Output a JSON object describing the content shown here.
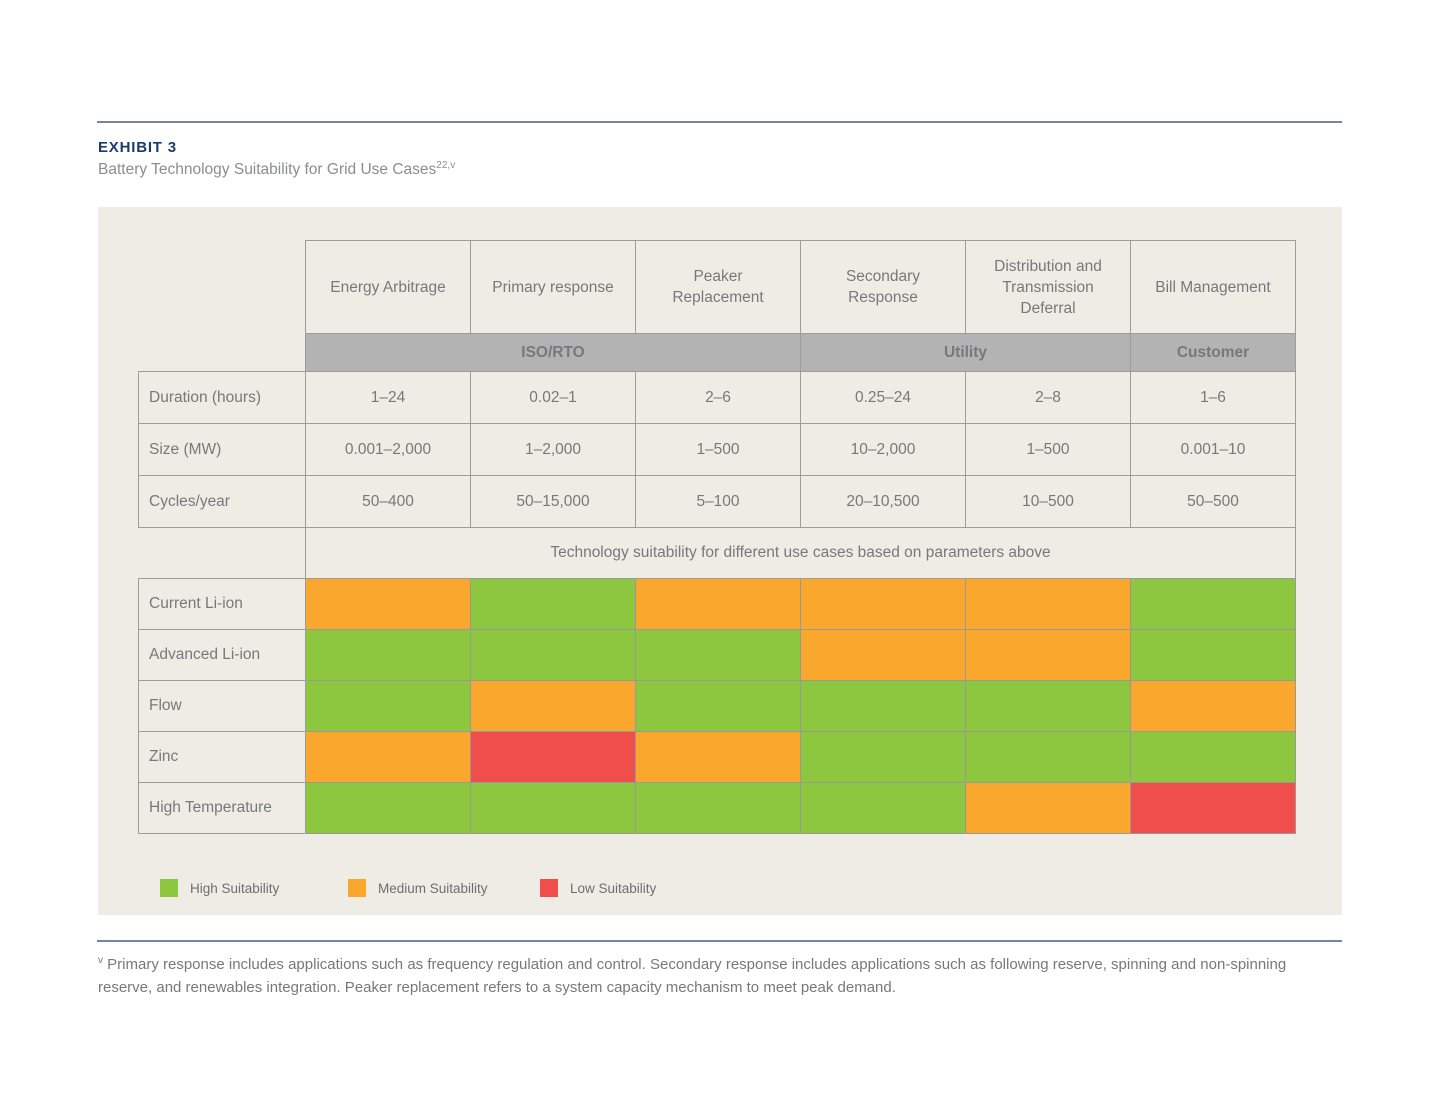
{
  "exhibit": {
    "label": "EXHIBIT 3",
    "title": "Battery Technology Suitability for Grid Use Cases",
    "title_superscript": "22,v"
  },
  "chart_data": {
    "type": "heatmap",
    "title": "Battery Technology Suitability for Grid Use Cases",
    "columns": [
      "Energy Arbitrage",
      "Primary response",
      "Peaker Replacement",
      "Secondary Response",
      "Distribution and Transmission Deferral",
      "Bill Management"
    ],
    "column_groups": [
      {
        "label": "ISO/RTO",
        "span": 3
      },
      {
        "label": "Utility",
        "span": 2
      },
      {
        "label": "Customer",
        "span": 1
      }
    ],
    "parameters": [
      {
        "label": "Duration (hours)",
        "values": [
          "1–24",
          "0.02–1",
          "2–6",
          "0.25–24",
          "2–8",
          "1–6"
        ]
      },
      {
        "label": "Size (MW)",
        "values": [
          "0.001–2,000",
          "1–2,000",
          "1–500",
          "10–2,000",
          "1–500",
          "0.001–10"
        ]
      },
      {
        "label": "Cycles/year",
        "values": [
          "50–400",
          "50–15,000",
          "5–100",
          "20–10,500",
          "10–500",
          "50–500"
        ]
      }
    ],
    "suitability_note": "Technology suitability for different use cases based on parameters above",
    "technologies": [
      {
        "label": "Current Li-ion",
        "values": [
          "medium",
          "high",
          "medium",
          "medium",
          "medium",
          "high"
        ]
      },
      {
        "label": "Advanced Li-ion",
        "values": [
          "high",
          "high",
          "high",
          "medium",
          "medium",
          "high"
        ]
      },
      {
        "label": "Flow",
        "values": [
          "high",
          "medium",
          "high",
          "high",
          "high",
          "medium"
        ]
      },
      {
        "label": "Zinc",
        "values": [
          "medium",
          "low",
          "medium",
          "high",
          "high",
          "high"
        ]
      },
      {
        "label": "High Temperature",
        "values": [
          "high",
          "high",
          "high",
          "high",
          "medium",
          "low"
        ]
      }
    ],
    "legend": [
      {
        "label": "High Suitability",
        "level": "high"
      },
      {
        "label": "Medium Suitability",
        "level": "medium"
      },
      {
        "label": "Low Suitability",
        "level": "low"
      }
    ],
    "colors": {
      "high": "#8DC63F",
      "medium": "#FAA72D",
      "low": "#EF4E4B"
    }
  },
  "footnote": {
    "marker": "v",
    "text": "Primary response includes applications such as frequency regulation and control. Secondary response includes applications such as following reserve, spinning and non-spinning reserve, and renewables integration. Peaker replacement refers to a system capacity mechanism to meet peak demand."
  }
}
